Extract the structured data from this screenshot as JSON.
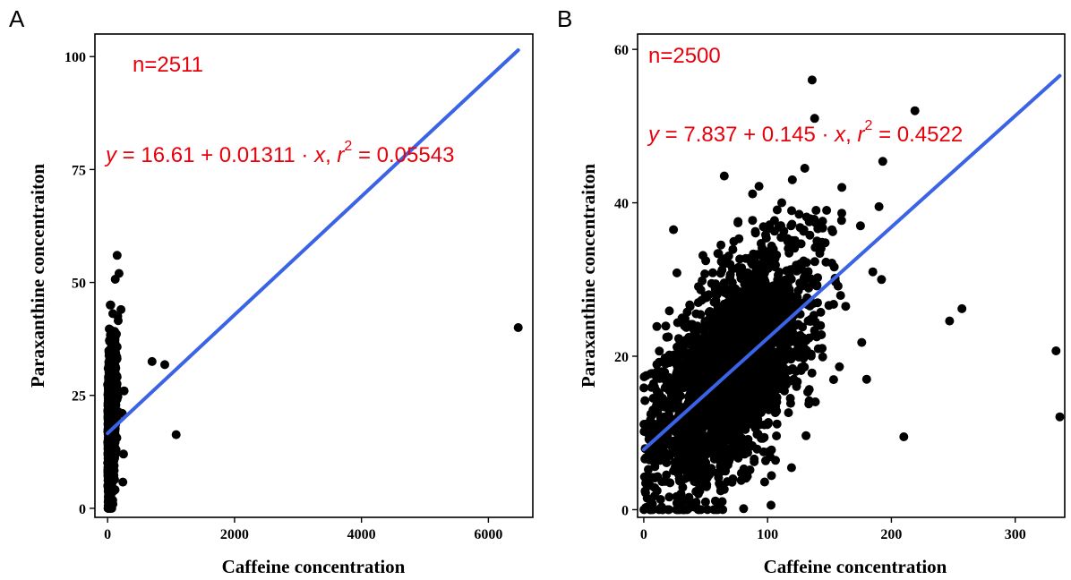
{
  "chart_data": [
    {
      "type": "scatter",
      "panel_label": "A",
      "xlabel": "Caffeine concentration",
      "ylabel": "Paraxanthine concentraiton",
      "xlim": [
        -200,
        6700
      ],
      "ylim": [
        -2,
        105
      ],
      "xticks": [
        0,
        2000,
        4000,
        6000
      ],
      "yticks": [
        0,
        25,
        50,
        75,
        100
      ],
      "annotation_n": "n=2511",
      "equation": {
        "y": "y",
        "eq": " = 16.61 + 0.01311 · ",
        "x": "x",
        "comma": ",  ",
        "r": "r",
        "sup": "2",
        "rest": " = 0.05543"
      },
      "fit": {
        "intercept": 16.61,
        "slope": 0.01311,
        "x_range": [
          0,
          6470
        ],
        "r2": 0.05543
      },
      "n": 2511,
      "cluster": {
        "x_range": [
          0,
          260
        ],
        "y_range": [
          0,
          45
        ]
      },
      "points": [
        [
          6470,
          40
        ],
        [
          700,
          32.5
        ],
        [
          900,
          31.8
        ],
        [
          1080,
          16.3
        ],
        [
          150,
          56
        ],
        [
          180,
          52
        ],
        [
          210,
          44
        ],
        [
          120,
          50.7
        ],
        [
          260,
          26
        ],
        [
          230,
          21
        ],
        [
          250,
          12
        ],
        [
          240,
          5.8
        ]
      ]
    },
    {
      "type": "scatter",
      "panel_label": "B",
      "xlabel": "Caffeine concentration",
      "ylabel": "Paraxanthine concentraiton",
      "xlim": [
        -5,
        340
      ],
      "ylim": [
        -1,
        62
      ],
      "xticks": [
        0,
        100,
        200,
        300
      ],
      "yticks": [
        0,
        20,
        40,
        60
      ],
      "annotation_n": "n=2500",
      "equation": {
        "y": "y",
        "eq": " = 7.837 + 0.145 · ",
        "x": "x",
        "comma": ",  ",
        "r": "r",
        "sup": "2",
        "rest": " = 0.4522"
      },
      "fit": {
        "intercept": 7.837,
        "slope": 0.145,
        "x_range": [
          0,
          336
        ],
        "r2": 0.4522
      },
      "n": 2500,
      "points": [
        [
          136,
          56
        ],
        [
          219,
          52
        ],
        [
          138,
          51
        ],
        [
          247,
          24.6
        ],
        [
          257,
          26.2
        ],
        [
          333,
          20.7
        ],
        [
          336,
          12.1
        ],
        [
          193,
          45.4
        ],
        [
          190,
          39.5
        ],
        [
          175,
          37
        ],
        [
          24,
          36.5
        ],
        [
          65,
          43.5
        ],
        [
          120,
          43
        ],
        [
          130,
          44.5
        ],
        [
          160,
          42
        ],
        [
          185,
          31
        ],
        [
          192,
          30
        ],
        [
          180,
          17
        ],
        [
          176,
          21.8
        ],
        [
          210,
          9.5
        ]
      ]
    }
  ]
}
